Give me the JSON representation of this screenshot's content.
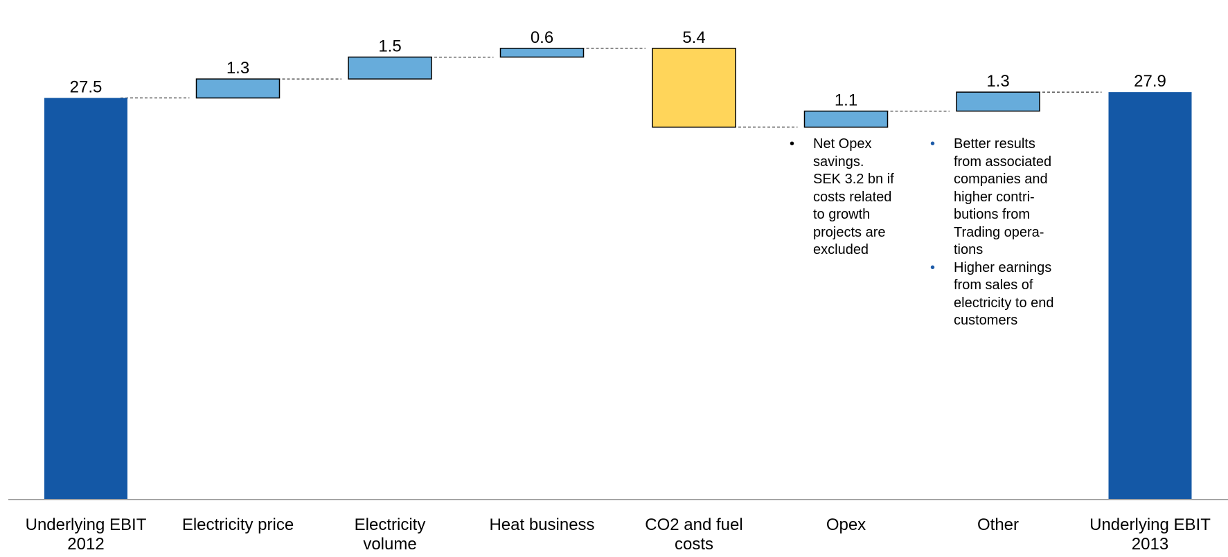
{
  "chart_data": {
    "type": "waterfall",
    "categories": [
      "Underlying EBIT\n2012",
      "Electricity price",
      "Electricity\nvolume",
      "Heat business",
      "CO2 and fuel\ncosts",
      "Opex",
      "Other",
      "Underlying EBIT\n2013"
    ],
    "steps": [
      {
        "kind": "total",
        "value": 27.5,
        "label": "27.5"
      },
      {
        "kind": "increase",
        "value": 1.3,
        "label": "1.3"
      },
      {
        "kind": "increase",
        "value": 1.5,
        "label": "1.5"
      },
      {
        "kind": "increase",
        "value": 0.6,
        "label": "0.6"
      },
      {
        "kind": "decrease",
        "value": -5.4,
        "label": "5.4"
      },
      {
        "kind": "increase",
        "value": 1.1,
        "label": "1.1"
      },
      {
        "kind": "increase",
        "value": 1.3,
        "label": "1.3"
      },
      {
        "kind": "total",
        "value": 27.9,
        "label": "27.9"
      }
    ],
    "ylim": [
      0,
      31
    ],
    "grid": false,
    "colors": {
      "total": "#1458a6",
      "increase": "#67acdb",
      "decrease": "#ffd55a",
      "connector": "#000000",
      "axis": "#a6a6a6",
      "bar_outline": "#000000"
    }
  },
  "notes": {
    "opex": [
      {
        "text": "Net Opex\nsavings.\nSEK 3.2 bn if\ncosts related\nto growth\nprojects are\nexcluded",
        "bullet": "•",
        "bullet_color": "#000000"
      }
    ],
    "other": [
      {
        "text": "Better results\nfrom associated\ncompanies and\nhigher contri-\nbutions from\nTrading opera-\ntions",
        "bullet": "•",
        "bullet_color": "#1e5ba8"
      },
      {
        "text": "Higher earnings\nfrom sales of\nelectricity to end\ncustomers",
        "bullet": "•",
        "bullet_color": "#1e5ba8"
      }
    ]
  }
}
